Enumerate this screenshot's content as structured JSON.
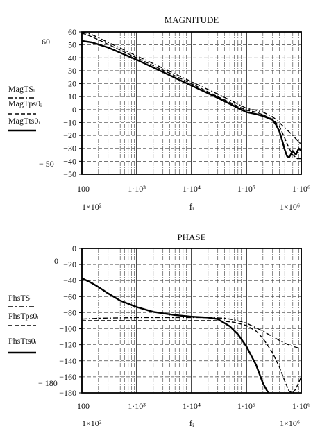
{
  "chart_data": [
    {
      "type": "line",
      "title": "MAGNITUDE",
      "x_scale": "log",
      "xlim": [
        100,
        1000000
      ],
      "ylim": [
        -50,
        60
      ],
      "x_tick_labels": [
        "100",
        "1·10³",
        "1·10⁴",
        "1·10⁵",
        "1·10⁶"
      ],
      "y_tick_labels": [
        "60",
        "50",
        "40",
        "30",
        "20",
        "10",
        "0",
        "−10",
        "−20",
        "−30",
        "−40",
        "−50"
      ],
      "y_outside_labels": [
        "60",
        "− 50"
      ],
      "x_outside_labels": [
        "1×10²",
        "1×10⁶"
      ],
      "xlabel": "fᵢ",
      "grid": true,
      "series": [
        {
          "name": "MagTSᵢ",
          "style": "dashdot",
          "x": [
            100,
            150,
            300,
            1000,
            3000,
            10000,
            30000,
            100000,
            150000,
            200000,
            300000,
            400000,
            500000,
            700000,
            1000000
          ],
          "y": [
            60,
            58,
            52,
            41.5,
            32,
            21.5,
            12,
            1,
            -0.5,
            -2,
            -5.5,
            -10,
            -14,
            -20,
            -27
          ]
        },
        {
          "name": "MagTps0ᵢ",
          "style": "dashed",
          "x": [
            100,
            120,
            200,
            1000,
            3000,
            10000,
            30000,
            100000,
            150000,
            200000,
            300000,
            400000,
            500000,
            600000,
            700000,
            850000,
            1000000
          ],
          "y": [
            59,
            58,
            54,
            40,
            30.5,
            20,
            10,
            -0.5,
            -2,
            -4,
            -7.5,
            -13,
            -22,
            -30,
            -35,
            -38,
            -38
          ]
        },
        {
          "name": "MagTts0ᵢ",
          "style": "solid",
          "x": [
            100,
            150,
            300,
            1000,
            3000,
            10000,
            30000,
            100000,
            150000,
            200000,
            300000,
            350000,
            400000,
            450000,
            500000,
            550000,
            600000,
            700000,
            800000,
            900000,
            1000000
          ],
          "y": [
            53,
            52,
            48,
            38.5,
            29,
            18.5,
            9,
            -2,
            -3.5,
            -5,
            -8,
            -12,
            -17,
            -24,
            -31,
            -36,
            -37,
            -32,
            -35,
            -30,
            -32
          ]
        }
      ]
    },
    {
      "type": "line",
      "title": "PHASE",
      "x_scale": "log",
      "xlim": [
        100,
        1000000
      ],
      "ylim": [
        -180,
        0
      ],
      "x_tick_labels": [
        "100",
        "1·10³",
        "1·10⁴",
        "1·10⁵",
        "1·10⁶"
      ],
      "y_tick_labels": [
        "0",
        "−20",
        "−40",
        "−60",
        "−80",
        "−100",
        "−120",
        "−140",
        "−160",
        "−180"
      ],
      "y_outside_labels": [
        "0",
        "− 180"
      ],
      "x_outside_labels": [
        "1×10²",
        "1×10⁶"
      ],
      "xlabel": "fᵢ",
      "grid": true,
      "series": [
        {
          "name": "PhsTSᵢ",
          "style": "dashdot",
          "x": [
            100,
            200,
            1000,
            5000,
            20000,
            40000,
            60000,
            100000,
            200000,
            300000,
            500000,
            700000,
            1000000
          ],
          "y": [
            -88,
            -87,
            -86,
            -86,
            -86,
            -87,
            -89,
            -93,
            -103,
            -110,
            -118,
            -122,
            -125
          ]
        },
        {
          "name": "PhsTps0ᵢ",
          "style": "dashed",
          "x": [
            100,
            1000,
            10000,
            30000,
            60000,
            100000,
            150000,
            200000,
            300000,
            400000,
            500000,
            600000,
            700000,
            800000,
            1000000
          ],
          "y": [
            -90,
            -90,
            -90,
            -90,
            -92,
            -96,
            -103,
            -112,
            -130,
            -148,
            -165,
            -178,
            -180,
            -175,
            -160
          ]
        },
        {
          "name": "PhsTts0ᵢ",
          "style": "solid",
          "x": [
            100,
            150,
            200,
            300,
            500,
            1000,
            2000,
            5000,
            10000,
            20000,
            30000,
            50000,
            70000,
            100000,
            150000,
            200000,
            250000
          ],
          "y": [
            -37,
            -43,
            -48,
            -56,
            -65,
            -73,
            -79,
            -83,
            -85,
            -86,
            -88,
            -97,
            -107,
            -122,
            -145,
            -168,
            -180
          ]
        }
      ]
    }
  ]
}
